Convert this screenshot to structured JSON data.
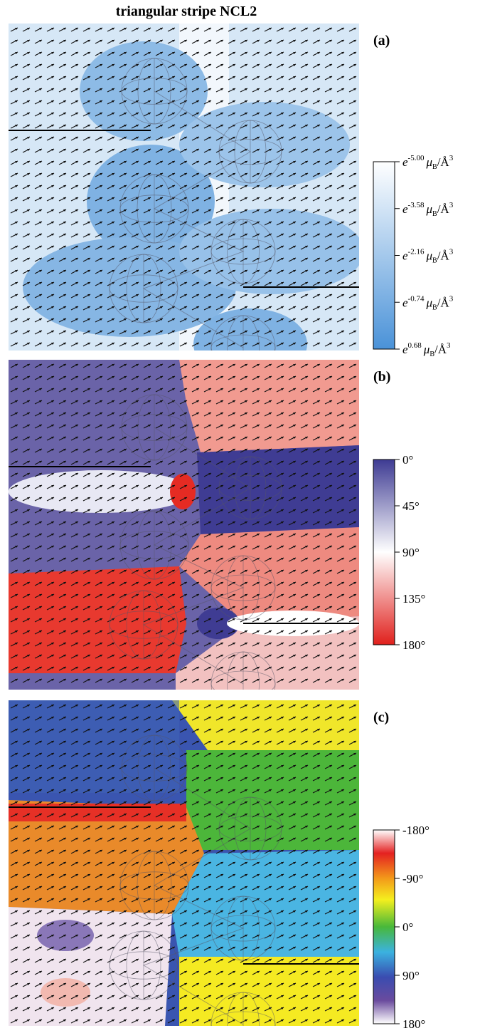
{
  "title": "triangular stripe NCL2",
  "panels": [
    {
      "label": "(a)",
      "colorbar": {
        "ticks": [
          {
            "base": "e",
            "exp": "-5.00",
            "unit": "μ",
            "sub": "B",
            "suffix": "/Å",
            "pow": "3"
          },
          {
            "base": "e",
            "exp": "-3.58",
            "unit": "μ",
            "sub": "B",
            "suffix": "/Å",
            "pow": "3"
          },
          {
            "base": "e",
            "exp": "-2.16",
            "unit": "μ",
            "sub": "B",
            "suffix": "/Å",
            "pow": "3"
          },
          {
            "base": "e",
            "exp": "-0.74",
            "unit": "μ",
            "sub": "B",
            "suffix": "/Å",
            "pow": "3"
          },
          {
            "base": "e",
            "exp": "0.68",
            "unit": "μ",
            "sub": "B",
            "suffix": "/Å",
            "pow": "3"
          }
        ]
      }
    },
    {
      "label": "(b)",
      "colorbar": {
        "ticks": [
          "0°",
          "45°",
          "90°",
          "135°",
          "180°"
        ]
      }
    },
    {
      "label": "(c)",
      "colorbar": {
        "ticks": [
          "-180°",
          "-90°",
          "0°",
          "90°",
          "180°"
        ]
      }
    }
  ]
}
